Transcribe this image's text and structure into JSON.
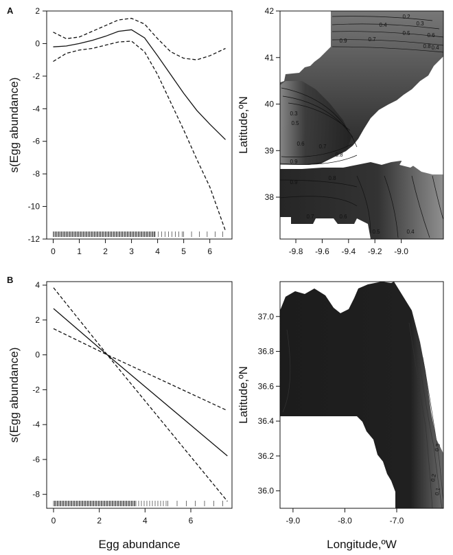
{
  "panels": [
    {
      "label": "A",
      "smooth": {
        "type": "line",
        "ylabel": "s(Egg abundance)",
        "xlabel": "",
        "xlim": [
          -0.25,
          6.85
        ],
        "ylim": [
          -12,
          2
        ],
        "xticks": [
          "0",
          "1",
          "2",
          "3",
          "4",
          "5",
          "6"
        ],
        "yticks": [
          "2",
          "0",
          "-2",
          "-4",
          "-6",
          "-8",
          "-10",
          "-12"
        ],
        "series": [
          {
            "style": "solid",
            "x": [
              0,
              0.5,
              1,
              1.5,
              2,
              2.5,
              3,
              3.5,
              4,
              4.5,
              5,
              5.5,
              6,
              6.6
            ],
            "y": [
              -0.2,
              -0.15,
              0.0,
              0.2,
              0.45,
              0.75,
              0.85,
              0.35,
              -0.75,
              -1.9,
              -3.05,
              -4.1,
              -4.95,
              -5.9
            ]
          },
          {
            "style": "dashed",
            "x": [
              0,
              0.5,
              1,
              1.5,
              2,
              2.5,
              3,
              3.5,
              4,
              4.5,
              5,
              5.5,
              6,
              6.6
            ],
            "y": [
              0.7,
              0.3,
              0.4,
              0.75,
              1.1,
              1.45,
              1.55,
              1.2,
              0.3,
              -0.5,
              -0.9,
              -1.0,
              -0.75,
              -0.3
            ]
          },
          {
            "style": "dashed",
            "x": [
              0,
              0.5,
              1,
              1.5,
              2,
              2.5,
              3,
              3.5,
              4,
              4.5,
              5,
              5.5,
              6,
              6.6
            ],
            "y": [
              -1.1,
              -0.6,
              -0.4,
              -0.3,
              -0.1,
              0.1,
              0.15,
              -0.5,
              -1.9,
              -3.6,
              -5.3,
              -7.1,
              -8.8,
              -11.5
            ]
          }
        ],
        "rug_ranges": [
          [
            0,
            3.9,
            0.035
          ],
          [
            3.9,
            5.0,
            0.13
          ],
          [
            5.0,
            6.7,
            0.3
          ]
        ]
      },
      "map": {
        "type": "heatmap",
        "ylabel": "Latitude,ºN",
        "xlabel": "",
        "xlim": [
          -9.92,
          -8.68
        ],
        "ylim": [
          37.1,
          42.0
        ],
        "xticks": [
          "-9.8",
          "-9.6",
          "-9.4",
          "-9.2",
          "-9.0"
        ],
        "yticks": [
          "42",
          "41",
          "40",
          "39",
          "38"
        ],
        "contour_labels": [
          "0.2",
          "0.3",
          "0.4",
          "0.5",
          "0.6",
          "0.7",
          "0.8",
          "0.9",
          "0.4",
          "0.3",
          "0.5",
          "0.6",
          "0.7",
          "0.8",
          "0.9",
          "0.9",
          "0.8",
          "0.7",
          "0.6",
          "0.5",
          "0.4"
        ]
      }
    },
    {
      "label": "B",
      "smooth": {
        "type": "line",
        "ylabel": "s(Egg abundance)",
        "xlabel": "Egg abundance",
        "xlim": [
          -0.3,
          7.8
        ],
        "ylim": [
          -8.8,
          4.2
        ],
        "xticks": [
          "0",
          "2",
          "4",
          "6"
        ],
        "yticks": [
          "4",
          "2",
          "0",
          "-2",
          "-4",
          "-6",
          "-8"
        ],
        "series": [
          {
            "style": "solid",
            "x": [
              0,
              2.35,
              7.6
            ],
            "y": [
              2.65,
              0.0,
              -5.8
            ]
          },
          {
            "style": "dashed",
            "x": [
              0,
              2.35,
              7.6
            ],
            "y": [
              3.85,
              0.0,
              -8.4
            ]
          },
          {
            "style": "dashed",
            "x": [
              0,
              2.35,
              7.6
            ],
            "y": [
              1.5,
              0.0,
              -3.2
            ]
          }
        ],
        "rug_ranges": [
          [
            0,
            3.6,
            0.04
          ],
          [
            3.6,
            5.0,
            0.12
          ],
          [
            5.0,
            7.6,
            0.4
          ]
        ]
      },
      "map": {
        "type": "heatmap",
        "ylabel": "Latitude,ºN",
        "xlabel": "Longitude,ºW",
        "xlim": [
          -9.25,
          -6.1
        ],
        "ylim": [
          35.9,
          37.2
        ],
        "xticks": [
          "-9.0",
          "-8.0",
          "-7.0"
        ],
        "yticks": [
          "37.0",
          "36.8",
          "36.6",
          "36.4",
          "36.2",
          "36.0"
        ],
        "contour_labels": [
          "0.3",
          "0.2",
          "0.1"
        ]
      }
    }
  ],
  "colors": {
    "line": "#111111",
    "land": "#ffffff",
    "shade_dark": "#222222",
    "shade_light": "#9a9a9a"
  }
}
